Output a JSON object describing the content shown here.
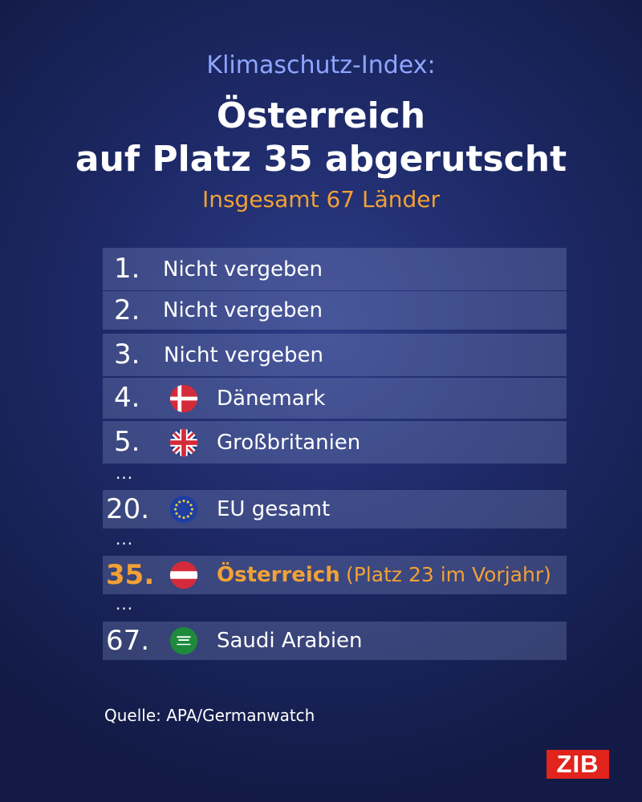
{
  "header": {
    "kicker": "Klimaschutz-Index:",
    "title_line1": "Österreich",
    "title_line2": "auf Platz 35 abgerutscht",
    "subtitle": "Insgesamt 67 Länder"
  },
  "chart_data": {
    "type": "table",
    "rows": [
      {
        "rank": "1.",
        "label": "Nicht vergeben"
      },
      {
        "rank": "2.",
        "label": "Nicht vergeben"
      },
      {
        "rank": "3.",
        "label": "Nicht vergeben"
      },
      {
        "rank": "4.",
        "label": "Dänemark",
        "flag": "denmark-flag-icon"
      },
      {
        "rank": "5.",
        "label": "Großbritanien",
        "flag": "uk-flag-icon"
      },
      {
        "rank": "20.",
        "label": "EU gesamt",
        "flag": "eu-flag-icon"
      },
      {
        "rank": "35.",
        "label": "Österreich",
        "note": "(Platz 23 im Vorjahr)",
        "flag": "austria-flag-icon",
        "highlight": true
      },
      {
        "rank": "67.",
        "label": "Saudi Arabien",
        "flag": "saudi-arabia-flag-icon"
      }
    ]
  },
  "ellipsis": "...",
  "source": "Quelle: APA/Germanwatch",
  "logo_text": "ZIB",
  "colors": {
    "accent": "#f2a135",
    "kicker": "#8fa6ff",
    "logo": "#e1241c",
    "background": "#1e2a68"
  }
}
